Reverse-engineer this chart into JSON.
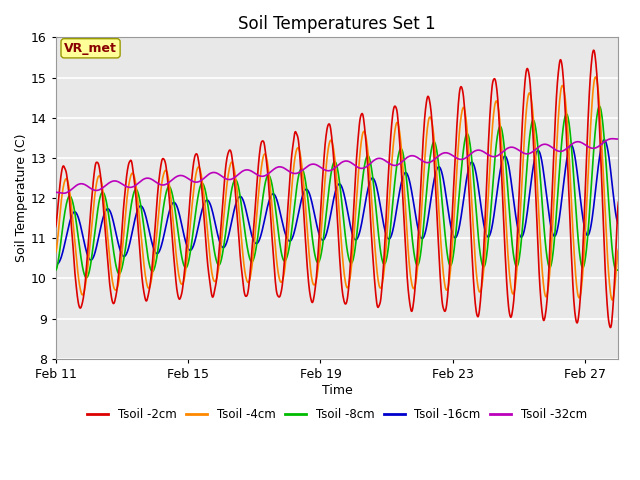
{
  "title": "Soil Temperatures Set 1",
  "xlabel": "Time",
  "ylabel": "Soil Temperature (C)",
  "ylim": [
    8.0,
    16.0
  ],
  "yticks": [
    8.0,
    9.0,
    10.0,
    11.0,
    12.0,
    13.0,
    14.0,
    15.0,
    16.0
  ],
  "xtick_labels": [
    "Feb 11",
    "Feb 15",
    "Feb 19",
    "Feb 23",
    "Feb 27"
  ],
  "xtick_positions": [
    0,
    4,
    8,
    12,
    16
  ],
  "xlim": [
    0,
    17
  ],
  "colors": {
    "tsoil_2cm": "#dd0000",
    "tsoil_4cm": "#ff8800",
    "tsoil_8cm": "#00bb00",
    "tsoil_16cm": "#0000cc",
    "tsoil_32cm": "#bb00bb"
  },
  "legend_labels": [
    "Tsoil -2cm",
    "Tsoil -4cm",
    "Tsoil -8cm",
    "Tsoil -16cm",
    "Tsoil -32cm"
  ],
  "annotation_text": "VR_met",
  "annotation_color": "#880000",
  "annotation_bg": "#ffff99",
  "annotation_border": "#999900",
  "background_color": "#e8e8e8",
  "grid_color": "#ffffff",
  "n_points": 1200
}
